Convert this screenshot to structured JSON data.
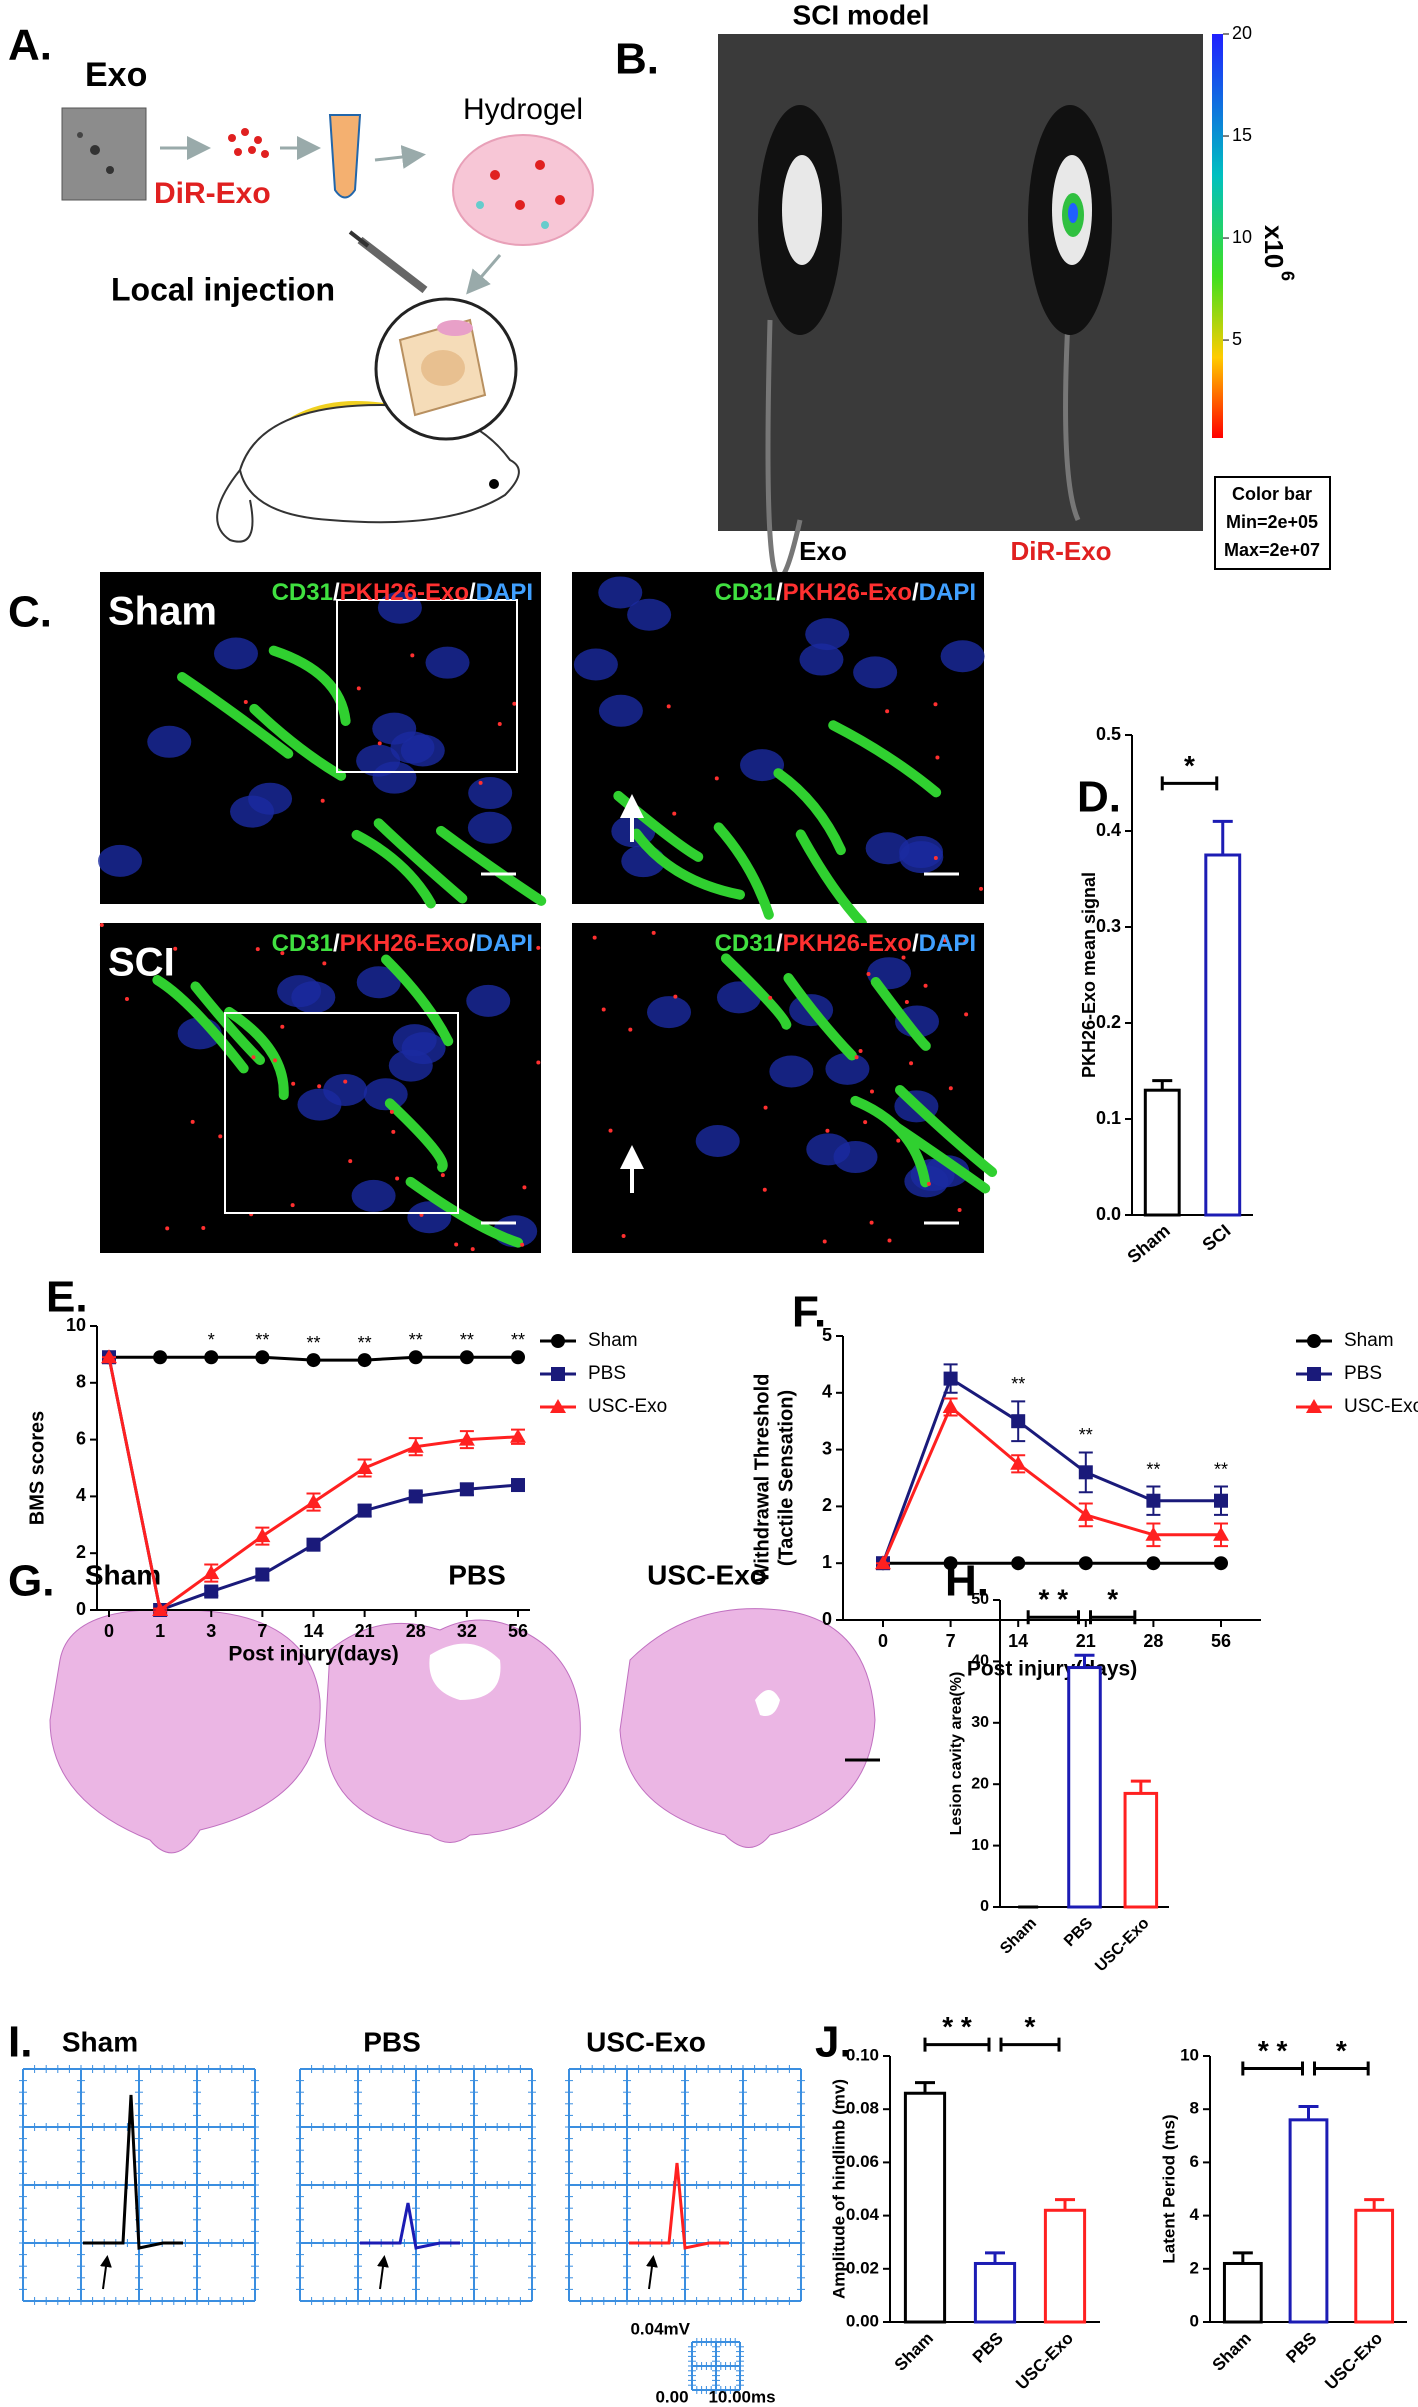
{
  "panel_labels": [
    "A.",
    "B.",
    "C.",
    "D.",
    "E.",
    "F.",
    "G.",
    "H.",
    "I.",
    "J."
  ],
  "panel_a": {
    "exo": "Exo",
    "dir_exo": "DiR-Exo",
    "hydrogel": "Hydrogel",
    "injection": "Local injection"
  },
  "panel_b": {
    "title": "SCI model",
    "images": [
      "Exo",
      "DiR-Exo"
    ],
    "colorbar": {
      "lim": [
        0.2,
        20
      ],
      "ticks": [
        5,
        10,
        15,
        20
      ],
      "unit": "x10",
      "exponent": "6",
      "note": [
        "Color bar",
        "Min=2e+05",
        "Max=2e+07"
      ]
    }
  },
  "panel_c": {
    "rows": [
      "Sham",
      "SCI"
    ],
    "stain": [
      "CD31",
      "/",
      "PKH26-Exo",
      "/",
      "DAPI"
    ]
  },
  "panel_g": {
    "groups": [
      "Sham",
      "PBS",
      "USC-Exo"
    ]
  },
  "panel_i": {
    "groups": [
      "Sham",
      "PBS",
      "USC-Exo"
    ],
    "scale": {
      "amplitude": "0.04mV",
      "origin": "0.00",
      "time": "10.00ms"
    }
  },
  "chart_data": [
    {
      "type": "bar",
      "ylabel": "PKH26-Exo mean signal",
      "categories": [
        "Sham",
        "SCI"
      ],
      "values": [
        0.13,
        0.375
      ],
      "errors": [
        0.01,
        0.035
      ],
      "colors": [
        "#000000",
        "#1c1cb4"
      ],
      "ylim": [
        0,
        0.5
      ],
      "yticks": [
        {
          "value": 0,
          "label": "0.0"
        },
        0.1,
        0.2,
        0.3,
        0.4,
        0.5
      ],
      "brackets": [
        {
          "between": [
            0,
            1
          ],
          "label": "*"
        }
      ]
    },
    {
      "type": "line",
      "xlabel": "Post injury(days)",
      "ylabel": [
        "BMS scores"
      ],
      "categories": [
        "0",
        "1",
        "3",
        "7",
        "14",
        "21",
        "28",
        "32",
        "56"
      ],
      "ylim": [
        0,
        10
      ],
      "yticks": [
        0,
        2,
        4,
        6,
        8,
        10
      ],
      "legend": "right",
      "significance": [
        null,
        null,
        "*",
        "**",
        "**",
        "**",
        "**",
        "**",
        "**"
      ],
      "series": [
        {
          "name": "Sham",
          "color": "#000000",
          "marker": "circle",
          "values": [
            8.9,
            8.9,
            8.9,
            8.9,
            8.8,
            8.8,
            8.9,
            8.9,
            8.9
          ]
        },
        {
          "name": "PBS",
          "color": "#1a1a7a",
          "marker": "square",
          "values": [
            8.9,
            0,
            0.65,
            1.25,
            2.3,
            3.5,
            4.0,
            4.25,
            4.4
          ],
          "errors": [
            0,
            0.05,
            0.15,
            0.2,
            0.2,
            0.2,
            0.15,
            0.2,
            0.15
          ]
        },
        {
          "name": "USC-Exo",
          "color": "#ff2020",
          "marker": "triangle",
          "values": [
            8.9,
            0,
            1.3,
            2.6,
            3.8,
            5.0,
            5.75,
            6.0,
            6.1
          ],
          "errors": [
            0,
            0.05,
            0.3,
            0.3,
            0.3,
            0.3,
            0.3,
            0.3,
            0.25
          ]
        }
      ]
    },
    {
      "type": "line",
      "xlabel": "Post injury(days)",
      "ylabel": [
        "Withdrawal Threshold",
        "(Tactile Sensation)"
      ],
      "categories": [
        "0",
        "7",
        "14",
        "21",
        "28",
        "56"
      ],
      "ylim": [
        0,
        5
      ],
      "yticks": [
        0,
        1,
        2,
        3,
        4,
        5
      ],
      "legend": "right",
      "significance": [
        null,
        null,
        "**",
        "**",
        "**",
        "**"
      ],
      "series": [
        {
          "name": "Sham",
          "color": "#000000",
          "marker": "circle",
          "values": [
            1,
            1,
            1,
            1,
            1,
            1
          ]
        },
        {
          "name": "PBS",
          "color": "#1a1a7a",
          "marker": "square",
          "values": [
            1,
            4.25,
            3.5,
            2.6,
            2.1,
            2.1
          ],
          "errors": [
            0,
            0.25,
            0.35,
            0.35,
            0.25,
            0.25
          ]
        },
        {
          "name": "USC-Exo",
          "color": "#ff2020",
          "marker": "triangle",
          "values": [
            1,
            3.75,
            2.75,
            1.85,
            1.5,
            1.5
          ],
          "errors": [
            0,
            0.15,
            0.15,
            0.2,
            0.2,
            0.2
          ]
        }
      ]
    },
    {
      "type": "bar",
      "ylabel": "Lesion cavity area(%)",
      "categories": [
        "Sham",
        "PBS",
        "USC-Exo"
      ],
      "values": [
        0,
        39,
        18.5
      ],
      "errors": [
        0,
        2,
        2
      ],
      "colors": [
        "#000000",
        "#1c1cb4",
        "#ff2020"
      ],
      "ylim": [
        0,
        50
      ],
      "yticks": [
        0,
        10,
        20,
        30,
        40,
        50
      ],
      "brackets": [
        {
          "between": [
            0,
            1
          ],
          "label": "* *"
        },
        {
          "between": [
            1,
            2
          ],
          "label": "*"
        }
      ]
    },
    {
      "type": "bar",
      "ylabel": "Amplitude of hindlimb (mv)",
      "categories": [
        "Sham",
        "PBS",
        "USC-Exo"
      ],
      "values": [
        0.086,
        0.022,
        0.042
      ],
      "errors": [
        0.004,
        0.004,
        0.004
      ],
      "colors": [
        "#000000",
        "#1c1cb4",
        "#ff2020"
      ],
      "ylim": [
        0,
        0.1
      ],
      "yticks": [
        {
          "value": 0,
          "label": "0.00"
        },
        0.02,
        0.04,
        0.06,
        0.08,
        {
          "value": 0.1,
          "label": "0.10"
        }
      ],
      "brackets": [
        {
          "between": [
            0,
            1
          ],
          "label": "* *"
        },
        {
          "between": [
            1,
            2
          ],
          "label": "*"
        }
      ]
    },
    {
      "type": "bar",
      "ylabel": "Latent Period (ms)",
      "categories": [
        "Sham",
        "PBS",
        "USC-Exo"
      ],
      "values": [
        2.2,
        7.6,
        4.2
      ],
      "errors": [
        0.4,
        0.5,
        0.4
      ],
      "colors": [
        "#000000",
        "#1c1cb4",
        "#ff2020"
      ],
      "ylim": [
        0,
        10
      ],
      "yticks": [
        0,
        2,
        4,
        6,
        8,
        10
      ],
      "brackets": [
        {
          "between": [
            0,
            1
          ],
          "label": "* *"
        },
        {
          "between": [
            1,
            2
          ],
          "label": "*"
        }
      ]
    }
  ]
}
